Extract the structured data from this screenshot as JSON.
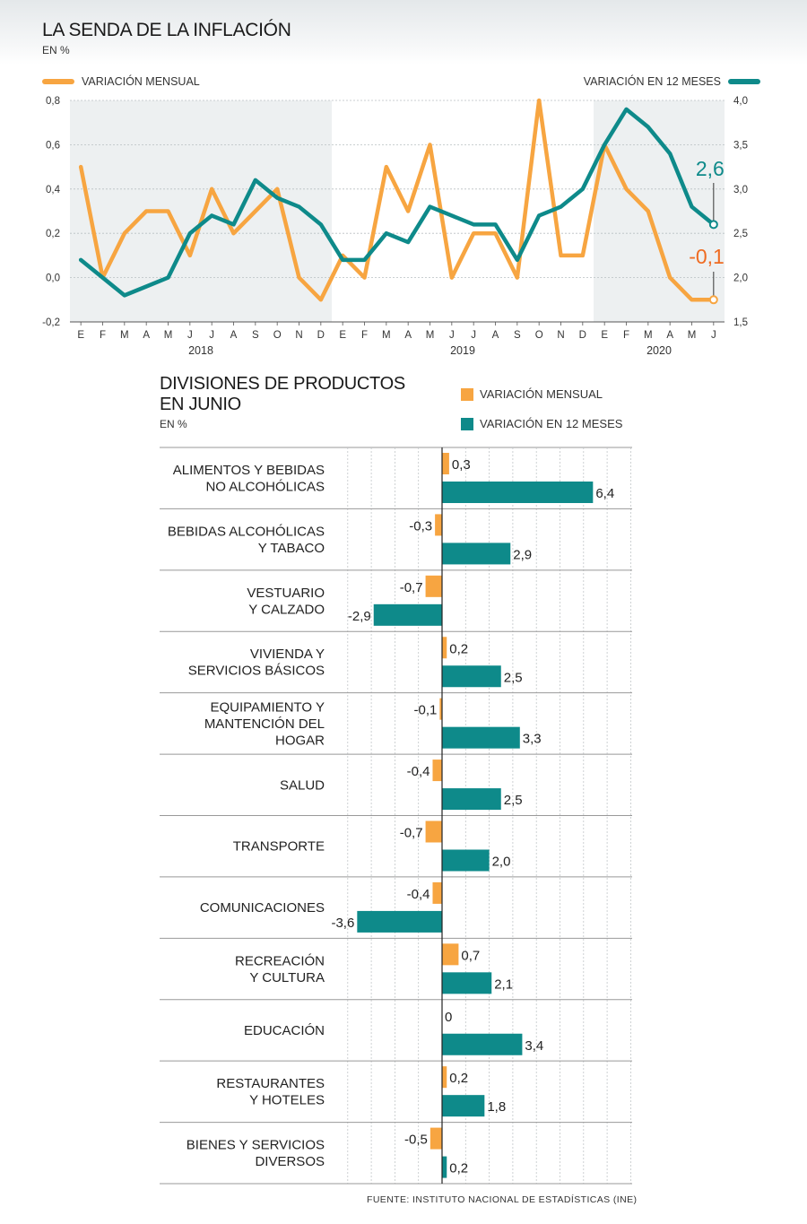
{
  "line_chart": {
    "title": "LA SENDA DE LA INFLACIÓN",
    "subtitle": "EN %",
    "legend_left": "VARIACIÓN MENSUAL",
    "legend_right": "VARIACIÓN EN 12 MESES",
    "colors": {
      "monthly": "#f7a541",
      "annual": "#0e8a8a",
      "shade": "#edf0f1",
      "last_monthly_label": "#ef6b21"
    }
  },
  "bar_chart": {
    "title_line1": "DIVISIONES DE PRODUCTOS",
    "title_line2": "EN JUNIO",
    "subtitle": "EN %",
    "legend_monthly": "VARIACIÓN MENSUAL",
    "legend_annual": "VARIACIÓN EN 12 MESES"
  },
  "source": "FUENTE: INSTITUTO NACIONAL DE ESTADÍSTICAS (INE)",
  "chart_data": [
    {
      "type": "line",
      "title": "LA SENDA DE LA INFLACIÓN",
      "subtitle": "EN %",
      "x": [
        "E",
        "F",
        "M",
        "A",
        "M",
        "J",
        "J",
        "A",
        "S",
        "O",
        "N",
        "D",
        "E",
        "F",
        "M",
        "A",
        "M",
        "J",
        "J",
        "A",
        "S",
        "O",
        "N",
        "D",
        "E",
        "F",
        "M",
        "A",
        "M",
        "J"
      ],
      "year_labels": [
        {
          "label": "2018",
          "start": 0,
          "end": 11
        },
        {
          "label": "2019",
          "start": 12,
          "end": 23
        },
        {
          "label": "2020",
          "start": 24,
          "end": 29
        }
      ],
      "shaded_ranges": [
        [
          0,
          11
        ],
        [
          24,
          29
        ]
      ],
      "y_left": {
        "min": -0.2,
        "max": 0.8,
        "ticks": [
          "-0,2",
          "0,0",
          "0,2",
          "0,4",
          "0,6",
          "0,8"
        ]
      },
      "y_right": {
        "min": 1.5,
        "max": 4.0,
        "ticks": [
          "1,5",
          "2,0",
          "2,5",
          "3,0",
          "3,5",
          "4,0"
        ]
      },
      "series": [
        {
          "name": "VARIACIÓN MENSUAL",
          "axis": "left",
          "values": [
            0.5,
            0.0,
            0.2,
            0.3,
            0.3,
            0.1,
            0.4,
            0.2,
            0.3,
            0.4,
            0.0,
            -0.1,
            0.1,
            0.0,
            0.5,
            0.3,
            0.6,
            0.0,
            0.2,
            0.2,
            0.0,
            0.8,
            0.1,
            0.1,
            0.6,
            0.4,
            0.3,
            0.0,
            -0.1,
            -0.1
          ],
          "last_label": "-0,1"
        },
        {
          "name": "VARIACIÓN EN 12 MESES",
          "axis": "right",
          "values": [
            2.2,
            2.0,
            1.8,
            1.9,
            2.0,
            2.5,
            2.7,
            2.6,
            3.1,
            2.9,
            2.8,
            2.6,
            2.2,
            2.2,
            2.5,
            2.4,
            2.8,
            2.7,
            2.6,
            2.6,
            2.2,
            2.7,
            2.8,
            3.0,
            3.5,
            3.9,
            3.7,
            3.4,
            2.8,
            2.6
          ],
          "last_label": "2,6"
        }
      ],
      "grid": true
    },
    {
      "type": "bar",
      "orientation": "horizontal",
      "title": "DIVISIONES DE PRODUCTOS EN JUNIO",
      "subtitle": "EN %",
      "xlim": [
        -6.0,
        8.0
      ],
      "categories": [
        [
          "ALIMENTOS Y BEBIDAS",
          "NO ALCOHÓLICAS"
        ],
        [
          "BEBIDAS ALCOHÓLICAS",
          "Y TABACO"
        ],
        [
          "VESTUARIO",
          "Y CALZADO"
        ],
        [
          "VIVIENDA Y",
          "SERVICIOS BÁSICOS"
        ],
        [
          "EQUIPAMIENTO Y",
          "MANTENCIÓN DEL",
          "HOGAR"
        ],
        [
          "SALUD"
        ],
        [
          "TRANSPORTE"
        ],
        [
          "COMUNICACIONES"
        ],
        [
          "RECREACIÓN",
          "Y CULTURA"
        ],
        [
          "EDUCACIÓN"
        ],
        [
          "RESTAURANTES",
          "Y HOTELES"
        ],
        [
          "BIENES Y SERVICIOS",
          "DIVERSOS"
        ]
      ],
      "series": [
        {
          "name": "VARIACIÓN MENSUAL",
          "color": "#f7a541",
          "values": [
            0.3,
            -0.3,
            -0.7,
            0.2,
            -0.1,
            -0.4,
            -0.7,
            -0.4,
            0.7,
            0,
            0.2,
            -0.5
          ],
          "labels": [
            "0,3",
            "-0,3",
            "-0,7",
            "0,2",
            "-0,1",
            "-0,4",
            "-0,7",
            "-0,4",
            "0,7",
            "0",
            "0,2",
            "-0,5"
          ]
        },
        {
          "name": "VARIACIÓN EN 12 MESES",
          "color": "#0e8a8a",
          "values": [
            6.4,
            2.9,
            -2.9,
            2.5,
            3.3,
            2.5,
            2.0,
            -3.6,
            2.1,
            3.4,
            1.8,
            0.2
          ],
          "labels": [
            "6,4",
            "2,9",
            "-2,9",
            "2,5",
            "3,3",
            "2,5",
            "2,0",
            "-3,6",
            "2,1",
            "3,4",
            "1,8",
            "0,2"
          ]
        }
      ]
    }
  ]
}
